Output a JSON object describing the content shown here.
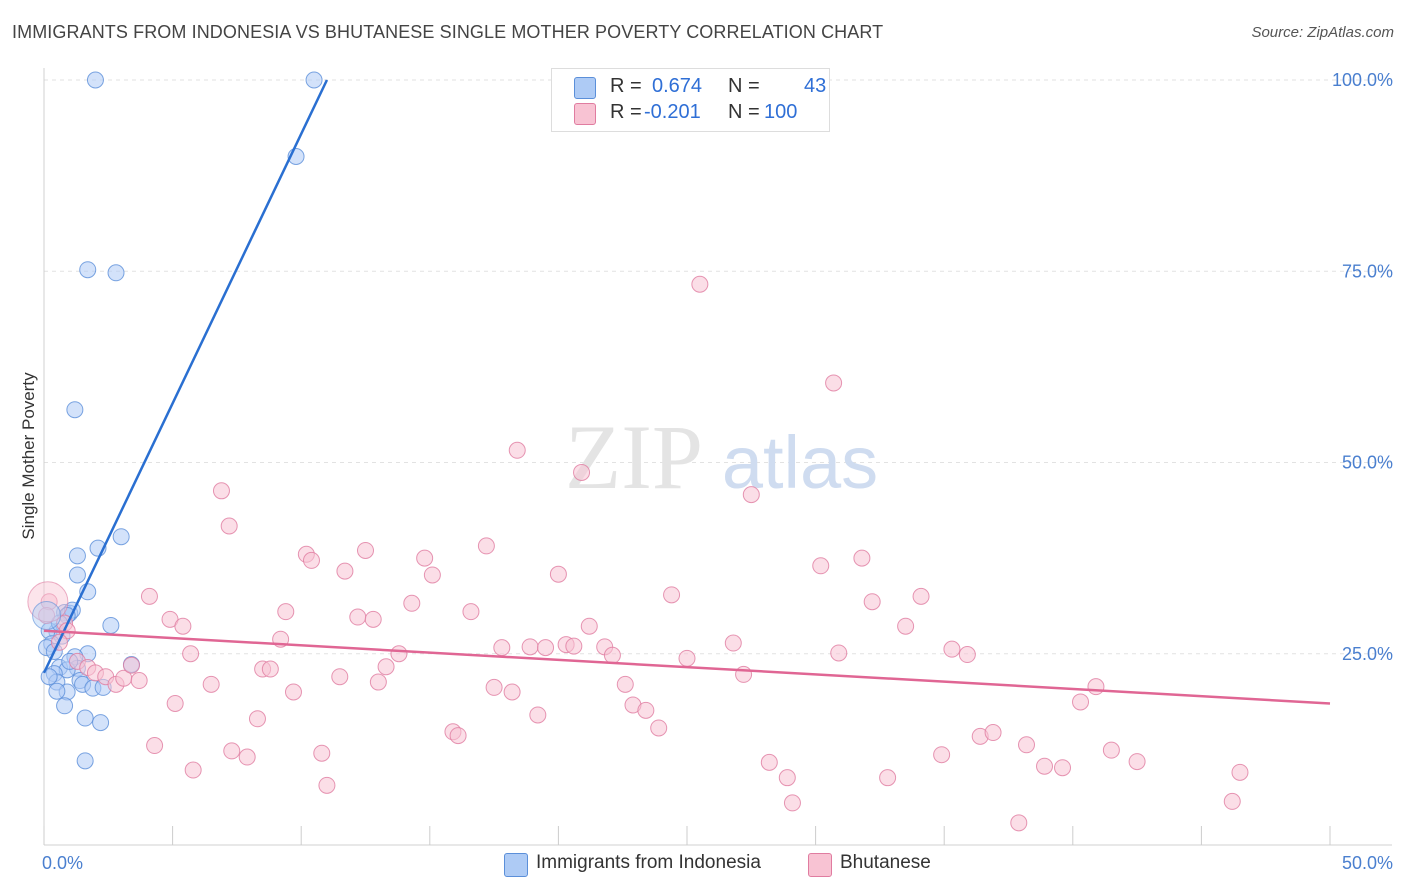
{
  "title": "IMMIGRANTS FROM INDONESIA VS BHUTANESE SINGLE MOTHER POVERTY CORRELATION CHART",
  "source": "Source: ZipAtlas.com",
  "watermark": {
    "zip": "ZIP",
    "atlas": "atlas"
  },
  "legend_top": {
    "rows": [
      {
        "r_label": "R =",
        "r_value": "0.674",
        "n_label": "N =",
        "n_value": "43",
        "fill": "#aecbf5",
        "stroke": "#5b8fd9"
      },
      {
        "r_label": "R =",
        "r_value": "-0.201",
        "n_label": "N =",
        "n_value": "100",
        "fill": "#f8c3d3",
        "stroke": "#e07ca0"
      }
    ]
  },
  "legend_bottom": {
    "items": [
      {
        "label": "Immigrants from Indonesia",
        "fill": "#aecbf5",
        "stroke": "#5b8fd9"
      },
      {
        "label": "Bhutanese",
        "fill": "#f8c3d3",
        "stroke": "#e07ca0"
      }
    ]
  },
  "chart_data": {
    "type": "scatter",
    "title": "IMMIGRANTS FROM INDONESIA VS BHUTANESE SINGLE MOTHER POVERTY CORRELATION CHART",
    "xlabel": "",
    "ylabel": "Single Mother Poverty",
    "xlim": [
      0,
      50
    ],
    "ylim": [
      0,
      100
    ],
    "x_tick_labels": [
      "0.0%",
      "50.0%"
    ],
    "y_tick_labels": [
      "25.0%",
      "50.0%",
      "75.0%",
      "100.0%"
    ],
    "y_ticks": [
      25,
      50,
      75,
      100
    ],
    "grid": true,
    "legend_position": "top-center",
    "series": [
      {
        "name": "Immigrants from Indonesia",
        "color": "#5b8fd9",
        "fill": "#aecbf5",
        "R": 0.674,
        "N": 43,
        "trend": {
          "x": [
            0,
            11
          ],
          "y": [
            22.5,
            100
          ]
        },
        "points": [
          [
            2.0,
            100
          ],
          [
            10.5,
            100
          ],
          [
            9.8,
            90
          ],
          [
            1.7,
            75.2
          ],
          [
            2.8,
            74.8
          ],
          [
            1.2,
            56.9
          ],
          [
            3.0,
            40.3
          ],
          [
            2.1,
            38.8
          ],
          [
            1.3,
            37.8
          ],
          [
            1.3,
            35.3
          ],
          [
            1.7,
            33.1
          ],
          [
            0.8,
            30.4
          ],
          [
            1.0,
            30.3
          ],
          [
            1.1,
            30.7
          ],
          [
            0.9,
            30.0
          ],
          [
            2.6,
            28.7
          ],
          [
            0.5,
            27.9
          ],
          [
            0.2,
            28.0
          ],
          [
            0.7,
            27.3
          ],
          [
            0.3,
            26.3
          ],
          [
            0.1,
            25.8
          ],
          [
            0.4,
            25.3
          ],
          [
            1.7,
            25.0
          ],
          [
            1.2,
            24.6
          ],
          [
            3.4,
            23.6
          ],
          [
            0.6,
            23.2
          ],
          [
            1.3,
            23.1
          ],
          [
            0.9,
            22.9
          ],
          [
            0.4,
            22.4
          ],
          [
            1.4,
            21.5
          ],
          [
            0.5,
            21.3
          ],
          [
            1.5,
            21.0
          ],
          [
            1.9,
            20.5
          ],
          [
            2.3,
            20.6
          ],
          [
            0.9,
            20.0
          ],
          [
            0.5,
            20.1
          ],
          [
            0.8,
            18.2
          ],
          [
            1.6,
            16.6
          ],
          [
            2.2,
            16.0
          ],
          [
            1.6,
            11.0
          ],
          [
            0.2,
            22.0
          ],
          [
            0.6,
            29.0
          ],
          [
            1.0,
            24.0
          ]
        ]
      },
      {
        "name": "Bhutanese",
        "color": "#e07ca0",
        "fill": "#f8c3d3",
        "R": -0.201,
        "N": 100,
        "trend": {
          "x": [
            0,
            50
          ],
          "y": [
            28,
            18.5
          ]
        },
        "points": [
          [
            0.2,
            31.8
          ],
          [
            0.1,
            30.0
          ],
          [
            0.8,
            29.0
          ],
          [
            0.9,
            28.0
          ],
          [
            0.6,
            26.5
          ],
          [
            1.3,
            24.0
          ],
          [
            1.7,
            23.2
          ],
          [
            2.0,
            22.5
          ],
          [
            2.4,
            22.0
          ],
          [
            2.8,
            21.0
          ],
          [
            3.1,
            21.8
          ],
          [
            3.4,
            23.5
          ],
          [
            3.7,
            21.5
          ],
          [
            4.1,
            32.5
          ],
          [
            4.3,
            13.0
          ],
          [
            4.9,
            29.5
          ],
          [
            5.4,
            28.6
          ],
          [
            5.7,
            25.0
          ],
          [
            5.1,
            18.5
          ],
          [
            5.8,
            9.8
          ],
          [
            6.5,
            21.0
          ],
          [
            6.9,
            46.3
          ],
          [
            7.2,
            41.7
          ],
          [
            7.3,
            12.3
          ],
          [
            7.9,
            11.5
          ],
          [
            8.3,
            16.5
          ],
          [
            8.5,
            23.0
          ],
          [
            8.8,
            23.0
          ],
          [
            9.2,
            26.9
          ],
          [
            9.4,
            30.5
          ],
          [
            9.7,
            20.0
          ],
          [
            10.2,
            38.0
          ],
          [
            10.4,
            37.2
          ],
          [
            10.8,
            12.0
          ],
          [
            11.0,
            7.8
          ],
          [
            11.5,
            22.0
          ],
          [
            11.7,
            35.8
          ],
          [
            12.2,
            29.8
          ],
          [
            12.5,
            38.5
          ],
          [
            12.8,
            29.5
          ],
          [
            13.0,
            21.3
          ],
          [
            13.3,
            23.3
          ],
          [
            13.8,
            25.0
          ],
          [
            14.3,
            31.6
          ],
          [
            14.8,
            37.5
          ],
          [
            15.1,
            35.3
          ],
          [
            15.9,
            14.8
          ],
          [
            16.1,
            14.3
          ],
          [
            16.6,
            30.5
          ],
          [
            17.2,
            39.1
          ],
          [
            17.5,
            20.6
          ],
          [
            17.8,
            25.8
          ],
          [
            18.2,
            20.0
          ],
          [
            18.4,
            51.6
          ],
          [
            18.9,
            25.9
          ],
          [
            19.2,
            17.0
          ],
          [
            19.5,
            25.8
          ],
          [
            20.0,
            35.4
          ],
          [
            20.3,
            26.2
          ],
          [
            20.6,
            26.0
          ],
          [
            20.9,
            48.7
          ],
          [
            21.2,
            28.6
          ],
          [
            21.8,
            25.9
          ],
          [
            22.1,
            24.8
          ],
          [
            22.6,
            21.0
          ],
          [
            22.9,
            18.3
          ],
          [
            23.4,
            17.6
          ],
          [
            23.9,
            15.3
          ],
          [
            24.4,
            32.7
          ],
          [
            25.0,
            24.4
          ],
          [
            25.5,
            73.3
          ],
          [
            26.8,
            26.4
          ],
          [
            27.2,
            22.3
          ],
          [
            27.5,
            45.8
          ],
          [
            28.2,
            10.8
          ],
          [
            28.9,
            8.8
          ],
          [
            29.1,
            5.5
          ],
          [
            30.2,
            36.5
          ],
          [
            30.7,
            60.4
          ],
          [
            30.9,
            25.1
          ],
          [
            31.8,
            37.5
          ],
          [
            32.2,
            31.8
          ],
          [
            32.8,
            8.8
          ],
          [
            33.5,
            28.6
          ],
          [
            34.1,
            32.5
          ],
          [
            34.9,
            11.8
          ],
          [
            35.3,
            25.6
          ],
          [
            35.9,
            24.9
          ],
          [
            36.4,
            14.2
          ],
          [
            36.9,
            14.7
          ],
          [
            37.9,
            2.9
          ],
          [
            38.2,
            13.1
          ],
          [
            38.9,
            10.3
          ],
          [
            39.6,
            10.1
          ],
          [
            40.3,
            18.7
          ],
          [
            40.9,
            20.7
          ],
          [
            41.5,
            12.4
          ],
          [
            42.5,
            10.9
          ],
          [
            46.2,
            5.7
          ],
          [
            46.5,
            9.5
          ]
        ]
      }
    ]
  }
}
